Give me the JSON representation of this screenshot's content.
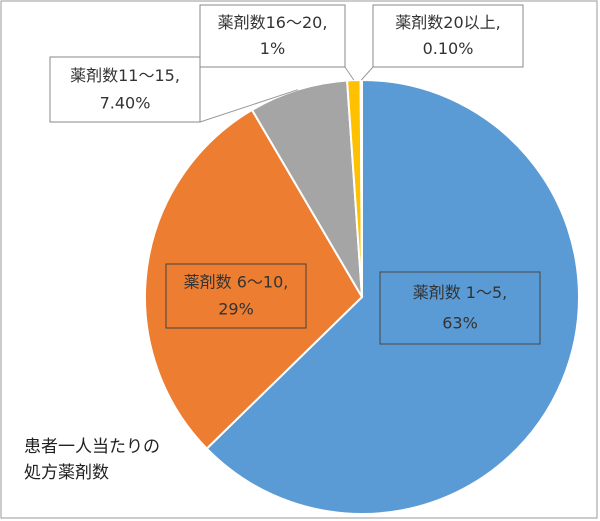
{
  "chart_data": {
    "type": "pie",
    "title": "患者一人当たりの処方薬剤数",
    "categories": [
      "薬剤数 1～5,",
      "薬剤数 6～10,",
      "薬剤数11～15,",
      "薬剤数16～20,",
      "薬剤数20以上,"
    ],
    "values": [
      63,
      29,
      7.4,
      1,
      0.1
    ],
    "value_labels": [
      "63%",
      "29%",
      "7.40%",
      "1%",
      "0.10%"
    ],
    "colors": [
      "#5b9bd5",
      "#ed7d31",
      "#a5a5a5",
      "#ffc000",
      "#4472c4"
    ]
  }
}
